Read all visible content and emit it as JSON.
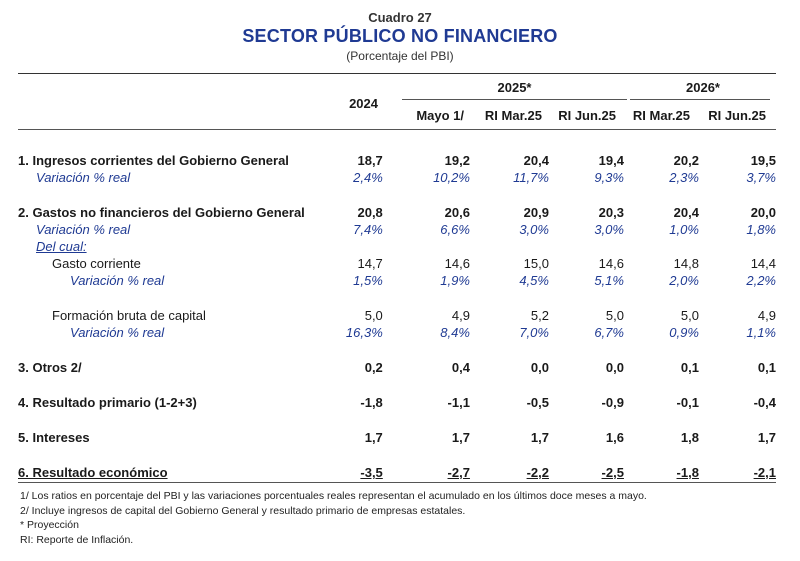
{
  "header": {
    "cuadro": "Cuadro 27",
    "title": "SECTOR PÚBLICO NO FINANCIERO",
    "subtitle": "(Porcentaje del PBI)"
  },
  "columns": {
    "group_2025": "2025*",
    "group_2026": "2026*",
    "c1": "2024",
    "c2": "Mayo 1/",
    "c3": "RI Mar.25",
    "c4": "RI Jun.25",
    "c5": "RI Mar.25",
    "c6": "RI Jun.25"
  },
  "rows": [
    {
      "label": "1. Ingresos corrientes del Gobierno General",
      "values": [
        "18,7",
        "19,2",
        "20,4",
        "19,4",
        "20,2",
        "19,5"
      ]
    },
    {
      "label": "Variación % real",
      "values": [
        "2,4%",
        "10,2%",
        "11,7%",
        "9,3%",
        "2,3%",
        "3,7%"
      ]
    },
    {
      "label": "2. Gastos no financieros del Gobierno General",
      "values": [
        "20,8",
        "20,6",
        "20,9",
        "20,3",
        "20,4",
        "20,0"
      ]
    },
    {
      "label": "Variación % real",
      "values": [
        "7,4%",
        "6,6%",
        "3,0%",
        "3,0%",
        "1,0%",
        "1,8%"
      ]
    },
    {
      "label": "Del cual:"
    },
    {
      "label": "Gasto corriente",
      "values": [
        "14,7",
        "14,6",
        "15,0",
        "14,6",
        "14,8",
        "14,4"
      ]
    },
    {
      "label": "Variación % real",
      "values": [
        "1,5%",
        "1,9%",
        "4,5%",
        "5,1%",
        "2,0%",
        "2,2%"
      ]
    },
    {
      "label": "Formación bruta de capital",
      "values": [
        "5,0",
        "4,9",
        "5,2",
        "5,0",
        "5,0",
        "4,9"
      ]
    },
    {
      "label": "Variación % real",
      "values": [
        "16,3%",
        "8,4%",
        "7,0%",
        "6,7%",
        "0,9%",
        "1,1%"
      ]
    },
    {
      "label": "3. Otros 2/",
      "values": [
        "0,2",
        "0,4",
        "0,0",
        "0,0",
        "0,1",
        "0,1"
      ]
    },
    {
      "label": "4. Resultado primario (1-2+3)",
      "values": [
        "-1,8",
        "-1,1",
        "-0,5",
        "-0,9",
        "-0,1",
        "-0,4"
      ]
    },
    {
      "label": "5. Intereses",
      "values": [
        "1,7",
        "1,7",
        "1,7",
        "1,6",
        "1,8",
        "1,7"
      ]
    },
    {
      "label": "6. Resultado económico",
      "values": [
        "-3,5",
        "-2,7",
        "-2,2",
        "-2,5",
        "-1,8",
        "-2,1"
      ]
    }
  ],
  "notes": [
    "1/ Los ratios en porcentaje del PBI y las variaciones porcentuales reales representan el acumulado en los últimos doce meses a mayo.",
    "2/ Incluye ingresos de capital del Gobierno General y resultado primario de empresas estatales.",
    "* Proyección",
    "RI: Reporte de Inflación."
  ]
}
